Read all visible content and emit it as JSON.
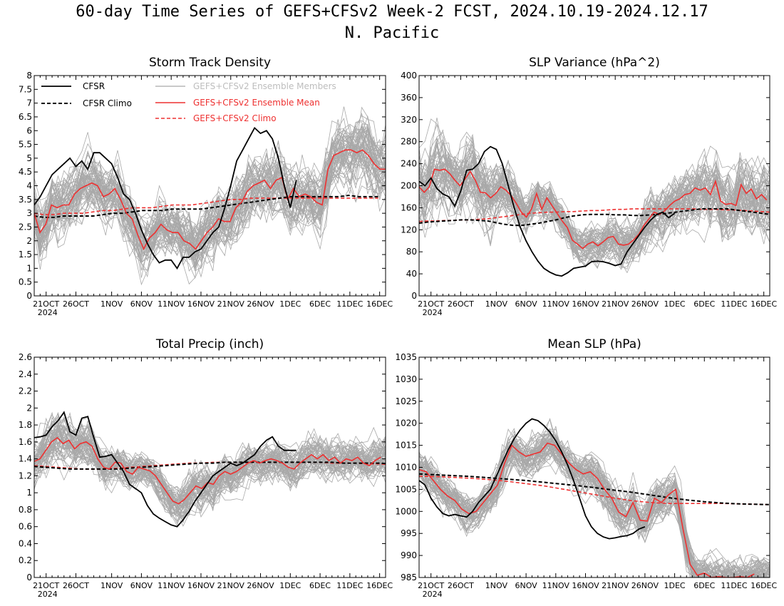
{
  "title": "60-day Time Series of GEFS+CFSv2 Week-2 FCST, 2024.10.19-2024.12.17",
  "subtitle": "N. Pacific",
  "colors": {
    "members": "#a9a9a9",
    "cfsr": "#000000",
    "ensemble": "#ee3030",
    "axis": "#000000"
  },
  "legend": {
    "cfsr": "CFSR",
    "cfsr_climo": "CFSR Climo",
    "members": "GEFS+CFSv2 Ensemble Members",
    "ensemble_mean": "GEFS+CFSv2 Ensemble Mean",
    "model_climo": "GEFS+CFSv2 Climo"
  },
  "chart_data": [
    {
      "type": "line",
      "title": "Storm Track Density",
      "ylim": [
        0,
        8
      ],
      "yticks": [
        "0",
        "0.5",
        "1",
        "1.5",
        "2",
        "2.5",
        "3",
        "3.5",
        "4",
        "4.5",
        "5",
        "5.5",
        "6",
        "6.5",
        "7",
        "7.5",
        "8"
      ],
      "x_day_ticks": [
        2,
        7,
        13,
        18,
        23,
        28,
        33,
        38,
        43,
        48,
        53,
        58
      ],
      "x_tick_labels": [
        "21OCT",
        "26OCT",
        "1NOV",
        "6NOV",
        "11NOV",
        "16NOV",
        "21NOV",
        "26NOV",
        "1DEC",
        "6DEC",
        "11DEC",
        "16DEC"
      ],
      "x_year_label": "2024",
      "legend_position": "top",
      "member_spread": [
        1.7,
        1.9,
        2.0,
        2.1,
        2.2,
        2.1,
        2.0,
        2.0,
        1.9,
        1.9,
        1.8,
        1.8,
        1.8,
        1.8,
        1.8,
        1.7,
        1.7,
        1.7,
        1.7,
        1.7,
        1.7,
        1.8,
        1.8,
        1.8,
        1.8,
        1.8,
        1.8,
        1.8,
        1.8,
        1.8,
        1.9,
        1.9,
        1.9,
        1.9,
        1.9,
        1.9,
        1.9,
        1.9,
        1.9,
        1.9,
        1.9,
        1.9,
        2.0,
        2.0,
        2.1,
        2.1,
        2.1,
        2.1,
        2.1,
        2.1,
        2.1,
        2.1,
        2.1,
        2.1,
        2.1,
        2.1,
        2.1,
        2.1,
        2.1,
        2.1
      ],
      "cfsr": [
        3.3,
        3.6,
        4.0,
        4.4,
        4.6,
        4.8,
        5.0,
        4.7,
        4.9,
        4.6,
        5.2,
        5.2,
        5.0,
        4.8,
        4.3,
        3.7,
        3.5,
        3.0,
        2.4,
        1.9,
        1.5,
        1.2,
        1.3,
        1.3,
        1.0,
        1.4,
        1.4,
        1.6,
        1.7,
        2.0,
        2.3,
        2.5,
        3.2,
        4.0,
        4.9,
        5.3,
        5.7,
        6.1,
        5.9,
        6.0,
        5.7,
        5.0,
        4.0,
        3.2,
        4.2
      ],
      "ensemble_mean": [
        3.0,
        2.3,
        2.6,
        3.3,
        3.2,
        3.3,
        3.3,
        3.7,
        3.9,
        4.0,
        4.1,
        4.0,
        3.6,
        3.7,
        3.9,
        3.5,
        3.0,
        2.8,
        2.2,
        1.7,
        2.1,
        2.3,
        2.6,
        2.4,
        2.3,
        2.3,
        2.0,
        1.9,
        1.7,
        2.0,
        2.3,
        2.5,
        2.8,
        2.7,
        2.7,
        3.2,
        3.4,
        3.8,
        4.0,
        4.1,
        4.2,
        3.9,
        4.2,
        4.3,
        3.5,
        3.9,
        3.6,
        3.7,
        3.6,
        3.4,
        3.3,
        4.6,
        5.1,
        5.2,
        5.3,
        5.3,
        5.2,
        5.3,
        5.1,
        4.8,
        4.6,
        4.6
      ],
      "cfsr_climo": [
        2.9,
        2.85,
        2.85,
        2.9,
        2.9,
        2.9,
        2.9,
        2.95,
        3.0,
        3.0,
        3.05,
        3.1,
        3.1,
        3.1,
        3.15,
        3.15,
        3.15,
        3.15,
        3.2,
        3.25,
        3.3,
        3.35,
        3.4,
        3.45,
        3.5,
        3.55,
        3.6,
        3.6,
        3.6,
        3.6,
        3.6,
        3.6,
        3.65,
        3.6,
        3.6,
        3.6
      ],
      "cfsr_climo_start": 0,
      "cfsr_climo_step": 1.65,
      "model_climo": [
        3.0,
        2.95,
        2.95,
        3.0,
        3.0,
        3.0,
        3.05,
        3.1,
        3.1,
        3.15,
        3.2,
        3.2,
        3.2,
        3.25,
        3.3,
        3.3,
        3.3,
        3.35,
        3.4,
        3.45,
        3.5,
        3.5,
        3.55,
        3.55,
        3.55,
        3.55,
        3.55,
        3.55,
        3.55,
        3.55,
        3.55,
        3.55,
        3.55,
        3.55,
        3.55,
        3.55
      ],
      "model_climo_start": 0,
      "model_climo_step": 1.65
    },
    {
      "type": "line",
      "title": "SLP Variance (hPa^2)",
      "ylim": [
        0,
        400
      ],
      "yticks": [
        "0",
        "40",
        "80",
        "120",
        "160",
        "200",
        "240",
        "280",
        "320",
        "360",
        "400"
      ],
      "x_day_ticks": [
        2,
        7,
        13,
        18,
        23,
        28,
        33,
        38,
        43,
        48,
        53,
        58
      ],
      "x_tick_labels": [
        "21OCT",
        "26OCT",
        "1NOV",
        "6NOV",
        "11NOV",
        "16NOV",
        "21NOV",
        "26NOV",
        "1DEC",
        "6DEC",
        "11DEC",
        "16DEC"
      ],
      "x_year_label": "2024",
      "member_spread": [
        110,
        115,
        120,
        120,
        120,
        115,
        110,
        115,
        120,
        120,
        110,
        105,
        100,
        90,
        85,
        80,
        75,
        70,
        65,
        62,
        60,
        58,
        56,
        55,
        55,
        55,
        55,
        55,
        58,
        60,
        62,
        64,
        66,
        68,
        70,
        72,
        74,
        76,
        78,
        80,
        82,
        84,
        86,
        88,
        90,
        92,
        95,
        98,
        100,
        102,
        104,
        106,
        108,
        110,
        112,
        114,
        116,
        118,
        120,
        120
      ],
      "cfsr": [
        208,
        200,
        214,
        195,
        185,
        180,
        163,
        190,
        228,
        230,
        240,
        262,
        271,
        266,
        240,
        200,
        160,
        125,
        100,
        80,
        63,
        50,
        43,
        38,
        36,
        42,
        50,
        52,
        54,
        62,
        63,
        62,
        59,
        55,
        58,
        80,
        95,
        110,
        125,
        138,
        148,
        152,
        142,
        150
      ],
      "ensemble_mean": [
        198,
        188,
        198,
        230,
        228,
        230,
        222,
        210,
        200,
        212,
        226,
        210,
        188,
        187,
        178,
        186,
        198,
        192,
        182,
        168,
        152,
        143,
        158,
        186,
        157,
        178,
        164,
        150,
        136,
        124,
        101,
        94,
        86,
        94,
        98,
        91,
        98,
        106,
        108,
        94,
        92,
        94,
        102,
        112,
        128,
        140,
        152,
        148,
        154,
        164,
        172,
        176,
        184,
        186,
        196,
        192,
        196,
        184,
        208,
        172,
        166,
        168,
        164,
        202,
        186,
        194,
        176,
        184,
        174
      ],
      "ensemble_mean_start": 0,
      "ensemble_mean_step": 0.86,
      "cfsr_climo": [
        132,
        134,
        135,
        136,
        137,
        138,
        138,
        137,
        136,
        133,
        130,
        128,
        128,
        130,
        132,
        135,
        138,
        142,
        145,
        147,
        148,
        148,
        148,
        147,
        147,
        146,
        146,
        147,
        148,
        150,
        152,
        154,
        156,
        158,
        158,
        158,
        158,
        156,
        154,
        152,
        150,
        148
      ],
      "cfsr_climo_start": 0,
      "cfsr_climo_step": 1.44,
      "model_climo": [
        135,
        136,
        136,
        137,
        137,
        138,
        138,
        139,
        140,
        142,
        144,
        146,
        148,
        150,
        151,
        152,
        152,
        153,
        153,
        154,
        155,
        155,
        156,
        157,
        157,
        158,
        158,
        158,
        158,
        158,
        158,
        158,
        158,
        157,
        157,
        157,
        156,
        156,
        155,
        154,
        153,
        152
      ],
      "model_climo_start": 0,
      "model_climo_step": 1.44
    },
    {
      "type": "line",
      "title": "Total Precip (inch)",
      "ylim": [
        0,
        2.6
      ],
      "yticks": [
        "0",
        "0.2",
        "0.4",
        "0.6",
        "0.8",
        "1",
        "1.2",
        "1.4",
        "1.6",
        "1.8",
        "2",
        "2.2",
        "2.4",
        "2.6"
      ],
      "x_day_ticks": [
        2,
        7,
        13,
        18,
        23,
        28,
        33,
        38,
        43,
        48,
        53,
        58
      ],
      "x_tick_labels": [
        "21OCT",
        "26OCT",
        "1NOV",
        "6NOV",
        "11NOV",
        "16NOV",
        "21NOV",
        "26NOV",
        "1DEC",
        "6DEC",
        "11DEC",
        "16DEC"
      ],
      "x_year_label": "2024",
      "member_spread": [
        0.45,
        0.48,
        0.5,
        0.52,
        0.52,
        0.5,
        0.48,
        0.46,
        0.45,
        0.44,
        0.42,
        0.4,
        0.4,
        0.38,
        0.36,
        0.35,
        0.34,
        0.33,
        0.32,
        0.32,
        0.33,
        0.34,
        0.36,
        0.38,
        0.4,
        0.42,
        0.44,
        0.45,
        0.46,
        0.45,
        0.44,
        0.43,
        0.42,
        0.41,
        0.4,
        0.4,
        0.4,
        0.4,
        0.4,
        0.4,
        0.4,
        0.4,
        0.4,
        0.4,
        0.4,
        0.4,
        0.4,
        0.4,
        0.4,
        0.4,
        0.4,
        0.4,
        0.4,
        0.4,
        0.4,
        0.4,
        0.4,
        0.4,
        0.4,
        0.4
      ],
      "cfsr": [
        1.65,
        1.66,
        1.68,
        1.78,
        1.85,
        1.95,
        1.72,
        1.68,
        1.88,
        1.9,
        1.65,
        1.42,
        1.43,
        1.45,
        1.35,
        1.25,
        1.1,
        1.05,
        1.0,
        0.85,
        0.75,
        0.7,
        0.66,
        0.62,
        0.6,
        0.68,
        0.78,
        0.9,
        1.0,
        1.1,
        1.2,
        1.25,
        1.3,
        1.35,
        1.32,
        1.35,
        1.4,
        1.45,
        1.55,
        1.62,
        1.66,
        1.55,
        1.5,
        1.5,
        1.5
      ],
      "ensemble_mean": [
        1.37,
        1.4,
        1.5,
        1.6,
        1.65,
        1.58,
        1.62,
        1.52,
        1.58,
        1.6,
        1.55,
        1.4,
        1.3,
        1.28,
        1.36,
        1.35,
        1.25,
        1.22,
        1.3,
        1.28,
        1.26,
        1.2,
        1.1,
        1.0,
        0.9,
        0.87,
        0.92,
        1.0,
        1.08,
        1.05,
        1.12,
        1.1,
        1.2,
        1.25,
        1.22,
        1.25,
        1.3,
        1.35,
        1.38,
        1.35,
        1.38,
        1.4,
        1.38,
        1.35,
        1.3,
        1.28,
        1.35,
        1.4,
        1.45,
        1.4,
        1.45,
        1.38,
        1.42,
        1.35,
        1.4,
        1.38,
        1.42,
        1.35,
        1.32,
        1.38,
        1.42
      ],
      "ensemble_mean_start": 0,
      "ensemble_mean_step": 0.97,
      "cfsr_climo": [
        1.31,
        1.3,
        1.29,
        1.28,
        1.28,
        1.28,
        1.28,
        1.28,
        1.29,
        1.3,
        1.31,
        1.32,
        1.33,
        1.34,
        1.35,
        1.35,
        1.36,
        1.36,
        1.36,
        1.36,
        1.36,
        1.36,
        1.36,
        1.36,
        1.36,
        1.36,
        1.35,
        1.35,
        1.35,
        1.35,
        1.34
      ],
      "cfsr_climo_start": 0,
      "cfsr_climo_step": 2.0,
      "model_climo": [
        1.32,
        1.31,
        1.3,
        1.29,
        1.28,
        1.28,
        1.28,
        1.29,
        1.3,
        1.31,
        1.32,
        1.33,
        1.34,
        1.35,
        1.35,
        1.36,
        1.36,
        1.36,
        1.36,
        1.36,
        1.36,
        1.36,
        1.36,
        1.36,
        1.36,
        1.35,
        1.35,
        1.35,
        1.34,
        1.34,
        1.33
      ],
      "model_climo_start": 0,
      "model_climo_step": 2.0
    },
    {
      "type": "line",
      "title": "Mean SLP (hPa)",
      "ylim": [
        985,
        1035
      ],
      "yticks": [
        "985",
        "990",
        "995",
        "1000",
        "1005",
        "1010",
        "1015",
        "1020",
        "1025",
        "1030",
        "1035"
      ],
      "x_day_ticks": [
        2,
        7,
        13,
        18,
        23,
        28,
        33,
        38,
        43,
        48,
        53,
        58
      ],
      "x_tick_labels": [
        "21OCT",
        "26OCT",
        "1NOV",
        "6NOV",
        "11NOV",
        "16NOV",
        "21NOV",
        "26NOV",
        "1DEC",
        "6DEC",
        "11DEC",
        "16DEC"
      ],
      "x_year_label": "2024",
      "member_spread": [
        7,
        7,
        7,
        7,
        7,
        7,
        7,
        7,
        7,
        7,
        7,
        7,
        7,
        8,
        8,
        8,
        8,
        8,
        8,
        8,
        8,
        8,
        8,
        8,
        8,
        8,
        8,
        8,
        8,
        8,
        8,
        8,
        8,
        8,
        8,
        8,
        8,
        8,
        8,
        8,
        8,
        8,
        8,
        8,
        8,
        8,
        7,
        7,
        7,
        7,
        7,
        7,
        7,
        7,
        7,
        7,
        7,
        7,
        7,
        7
      ],
      "cfsr": [
        1007,
        1006,
        1003,
        1001,
        999.5,
        999,
        999.3,
        999,
        998.7,
        1000,
        1002,
        1003.5,
        1005,
        1008,
        1011,
        1014,
        1016.5,
        1018.5,
        1020,
        1021,
        1020.6,
        1019.5,
        1018,
        1016,
        1013.5,
        1010.5,
        1007,
        1003,
        999,
        996.5,
        995,
        994.2,
        993.8,
        994,
        994.3,
        994.5,
        995,
        996,
        996.5
      ],
      "cfsr_start": 0,
      "cfsr_step": 1.0,
      "ensemble_mean": [
        1009.5,
        1009,
        1007,
        1005,
        1003.5,
        1002.5,
        1000.5,
        999.5,
        1000,
        1002,
        1004,
        1006,
        1011,
        1015,
        1013.5,
        1012.5,
        1013,
        1013.5,
        1015.5,
        1015,
        1013,
        1011,
        1009.5,
        1008.5,
        1009,
        1007.5,
        1005,
        1003,
        999.8,
        998.8,
        1002,
        998,
        997.8,
        1003,
        1002,
        1003.8,
        1005,
        996,
        988,
        985.5,
        986,
        985,
        985.2,
        985,
        985,
        985.2,
        985,
        985.8
      ],
      "ensemble_mean_start": 0,
      "ensemble_mean_step": 1.2,
      "cfsr_climo": [
        1008.5,
        1008.3,
        1008.1,
        1007.9,
        1007.6,
        1007.3,
        1007.0,
        1006.6,
        1006.2,
        1005.8,
        1005.3,
        1004.8,
        1004.3,
        1003.7,
        1003.1,
        1002.6,
        1002.2,
        1001.9,
        1001.7,
        1001.6,
        1001.5
      ],
      "cfsr_climo_start": 0,
      "cfsr_climo_step": 3.0,
      "model_climo": [
        1008.0,
        1007.9,
        1007.7,
        1007.5,
        1007.2,
        1006.8,
        1006.3,
        1005.8,
        1005.1,
        1004.4,
        1003.7,
        1003.0,
        1002.4,
        1002.0,
        1001.8,
        1001.8,
        1001.8,
        1001.8,
        1001.7,
        1001.6,
        1001.5
      ],
      "model_climo_start": 0,
      "model_climo_step": 3.0
    }
  ]
}
